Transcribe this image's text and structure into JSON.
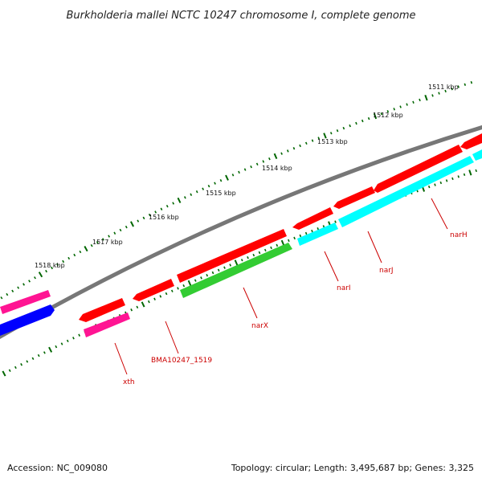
{
  "title": "Burkholderia mallei NCTC 10247 chromosome I, complete genome",
  "footer": {
    "accession": "Accession: NC_009080",
    "topology": "Topology: circular; Length: 3,495,687 bp; Genes: 3,325"
  },
  "kbp_labels": [
    "1511 kbp",
    "1512 kbp",
    "1513 kbp",
    "1514 kbp",
    "1515 kbp",
    "1516 kbp",
    "1517 kbp",
    "1518 kbp"
  ],
  "gene_labels": [
    "narH",
    "narJ",
    "narI",
    "narX",
    "BMA10247_1519",
    "xth"
  ],
  "colors": {
    "red": "#ff0000",
    "magenta": "#ff1493",
    "blue": "#0000ff",
    "green": "#33cc33",
    "cyan": "#00ffff",
    "backbone": "#777777",
    "tick": "#006600",
    "label": "#cc0000"
  }
}
